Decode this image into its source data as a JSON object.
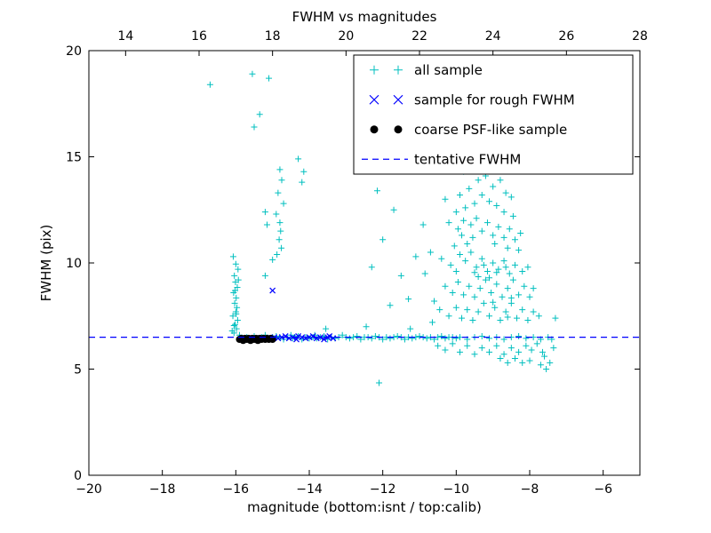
{
  "chart_data": {
    "type": "scatter",
    "title": "FWHM vs magnitudes",
    "xlabel": "magnitude (bottom:isnt / top:calib)",
    "ylabel": "FWHM (pix)",
    "xlim": [
      -20,
      -5
    ],
    "ylim": [
      0,
      20
    ],
    "x_ticks_bottom": [
      -20,
      -18,
      -16,
      -14,
      -12,
      -10,
      -8,
      -6
    ],
    "x_ticks_top": [
      14,
      16,
      18,
      20,
      22,
      24,
      26,
      28
    ],
    "top_axis_offset": 33,
    "y_ticks": [
      0,
      5,
      10,
      15,
      20
    ],
    "grid": false,
    "frame_color": "#000000",
    "legend": {
      "position": "upper right",
      "entries": [
        {
          "label": "all sample",
          "marker": "plus",
          "color": "#00bfbf"
        },
        {
          "label": "sample for rough FWHM",
          "marker": "x",
          "color": "#0000ff"
        },
        {
          "label": "coarse PSF-like sample",
          "marker": "dot",
          "color": "#000000"
        },
        {
          "label": "tentative FWHM",
          "marker": "dashed-line",
          "color": "#0000ff"
        }
      ]
    },
    "hlines": [
      {
        "name": "tentative FWHM",
        "y": 6.5,
        "style": "dashed",
        "color": "#0000ff"
      }
    ],
    "series": [
      {
        "name": "all sample",
        "marker": "plus",
        "color": "#00bfbf",
        "points": [
          [
            -16.05,
            6.7
          ],
          [
            -15.98,
            6.9
          ],
          [
            -16.02,
            7.1
          ],
          [
            -15.95,
            7.3
          ],
          [
            -16.08,
            7.5
          ],
          [
            -16.0,
            7.7
          ],
          [
            -15.97,
            7.9
          ],
          [
            -16.03,
            8.1
          ],
          [
            -15.99,
            8.35
          ],
          [
            -16.06,
            8.6
          ],
          [
            -15.96,
            8.85
          ],
          [
            -16.01,
            9.1
          ],
          [
            -16.04,
            9.4
          ],
          [
            -15.94,
            9.7
          ],
          [
            -16.0,
            9.95
          ],
          [
            -16.07,
            10.3
          ],
          [
            -15.93,
            9.2
          ],
          [
            -16.02,
            8.7
          ],
          [
            -15.99,
            7.6
          ],
          [
            -16.05,
            7.05
          ],
          [
            -15.9,
            6.6
          ],
          [
            -16.1,
            6.8
          ],
          [
            -16.7,
            18.4
          ],
          [
            -15.55,
            18.9
          ],
          [
            -15.1,
            18.7
          ],
          [
            -15.35,
            17.0
          ],
          [
            -15.5,
            16.4
          ],
          [
            -14.8,
            14.4
          ],
          [
            -14.75,
            13.9
          ],
          [
            -14.85,
            13.3
          ],
          [
            -14.7,
            12.8
          ],
          [
            -14.9,
            12.3
          ],
          [
            -14.8,
            11.9
          ],
          [
            -14.78,
            11.5
          ],
          [
            -14.82,
            11.1
          ],
          [
            -14.76,
            10.7
          ],
          [
            -14.88,
            10.4
          ],
          [
            -15.2,
            12.4
          ],
          [
            -15.15,
            11.8
          ],
          [
            -14.3,
            14.9
          ],
          [
            -14.2,
            13.8
          ],
          [
            -14.15,
            14.3
          ],
          [
            -15.2,
            9.4
          ],
          [
            -15.0,
            10.15
          ],
          [
            -15.85,
            6.45
          ],
          [
            -15.7,
            6.5
          ],
          [
            -15.6,
            6.4
          ],
          [
            -15.5,
            6.55
          ],
          [
            -15.4,
            6.45
          ],
          [
            -15.3,
            6.5
          ],
          [
            -15.2,
            6.6
          ],
          [
            -15.1,
            6.4
          ],
          [
            -15.0,
            6.5
          ],
          [
            -14.95,
            6.45
          ],
          [
            -14.9,
            6.55
          ],
          [
            -14.8,
            6.5
          ],
          [
            -14.7,
            6.4
          ],
          [
            -14.6,
            6.5
          ],
          [
            -14.5,
            6.6
          ],
          [
            -14.45,
            6.45
          ],
          [
            -14.4,
            6.5
          ],
          [
            -14.3,
            6.55
          ],
          [
            -14.2,
            6.4
          ],
          [
            -14.1,
            6.5
          ],
          [
            -14.0,
            6.45
          ],
          [
            -13.9,
            6.5
          ],
          [
            -13.85,
            6.6
          ],
          [
            -13.8,
            6.45
          ],
          [
            -13.7,
            6.5
          ],
          [
            -13.6,
            6.55
          ],
          [
            -13.5,
            6.4
          ],
          [
            -13.4,
            6.5
          ],
          [
            -13.3,
            6.45
          ],
          [
            -13.2,
            6.5
          ],
          [
            -13.1,
            6.6
          ],
          [
            -13.0,
            6.5
          ],
          [
            -12.9,
            6.45
          ],
          [
            -12.8,
            6.5
          ],
          [
            -12.7,
            6.55
          ],
          [
            -12.6,
            6.4
          ],
          [
            -12.5,
            6.5
          ],
          [
            -12.4,
            6.5
          ],
          [
            -12.3,
            6.45
          ],
          [
            -12.2,
            6.55
          ],
          [
            -12.1,
            6.5
          ],
          [
            -12.0,
            6.4
          ],
          [
            -11.9,
            6.5
          ],
          [
            -11.8,
            6.45
          ],
          [
            -11.7,
            6.5
          ],
          [
            -11.6,
            6.55
          ],
          [
            -11.5,
            6.5
          ],
          [
            -11.4,
            6.4
          ],
          [
            -11.3,
            6.5
          ],
          [
            -11.2,
            6.45
          ],
          [
            -11.1,
            6.5
          ],
          [
            -11.0,
            6.55
          ],
          [
            -10.9,
            6.5
          ],
          [
            -10.8,
            6.45
          ],
          [
            -10.7,
            6.5
          ],
          [
            -10.6,
            6.4
          ],
          [
            -10.5,
            6.5
          ],
          [
            -10.4,
            6.55
          ],
          [
            -10.3,
            6.45
          ],
          [
            -10.2,
            6.5
          ],
          [
            -10.1,
            6.5
          ],
          [
            -10.0,
            6.45
          ],
          [
            -9.9,
            6.5
          ],
          [
            -9.7,
            6.4
          ],
          [
            -9.5,
            6.5
          ],
          [
            -9.3,
            6.55
          ],
          [
            -9.1,
            6.45
          ],
          [
            -8.9,
            6.5
          ],
          [
            -8.7,
            6.4
          ],
          [
            -8.5,
            6.5
          ],
          [
            -8.3,
            6.55
          ],
          [
            -8.1,
            6.45
          ],
          [
            -7.9,
            6.5
          ],
          [
            -7.7,
            6.4
          ],
          [
            -7.5,
            6.5
          ],
          [
            -13.55,
            6.9
          ],
          [
            -12.45,
            7.0
          ],
          [
            -11.25,
            6.9
          ],
          [
            -12.1,
            4.35
          ],
          [
            -12.3,
            9.8
          ],
          [
            -12.0,
            11.1
          ],
          [
            -11.7,
            12.5
          ],
          [
            -12.15,
            13.4
          ],
          [
            -11.3,
            8.3
          ],
          [
            -11.1,
            10.3
          ],
          [
            -10.9,
            11.8
          ],
          [
            -11.8,
            8.0
          ],
          [
            -11.5,
            9.4
          ],
          [
            -10.85,
            9.5
          ],
          [
            -10.7,
            10.5
          ],
          [
            -10.6,
            8.2
          ],
          [
            -10.65,
            7.2
          ],
          [
            -10.1,
            14.6
          ],
          [
            -9.8,
            14.3
          ],
          [
            -9.55,
            14.5
          ],
          [
            -9.4,
            13.9
          ],
          [
            -9.2,
            14.1
          ],
          [
            -9.0,
            13.6
          ],
          [
            -8.8,
            13.9
          ],
          [
            -8.65,
            13.3
          ],
          [
            -9.65,
            13.5
          ],
          [
            -9.9,
            13.2
          ],
          [
            -10.3,
            13.0
          ],
          [
            -8.5,
            13.1
          ],
          [
            -9.3,
            13.2
          ],
          [
            -9.1,
            12.9
          ],
          [
            -8.9,
            12.7
          ],
          [
            -9.5,
            12.8
          ],
          [
            -9.75,
            12.6
          ],
          [
            -10.0,
            12.4
          ],
          [
            -8.7,
            12.4
          ],
          [
            -8.45,
            12.2
          ],
          [
            -10.2,
            11.9
          ],
          [
            -9.95,
            11.6
          ],
          [
            -9.8,
            12.0
          ],
          [
            -9.6,
            11.8
          ],
          [
            -9.45,
            12.1
          ],
          [
            -9.3,
            11.5
          ],
          [
            -9.15,
            11.9
          ],
          [
            -9.0,
            11.3
          ],
          [
            -8.85,
            11.7
          ],
          [
            -8.7,
            11.2
          ],
          [
            -8.55,
            11.6
          ],
          [
            -8.4,
            11.1
          ],
          [
            -8.25,
            11.4
          ],
          [
            -9.55,
            11.2
          ],
          [
            -9.7,
            10.9
          ],
          [
            -9.85,
            11.3
          ],
          [
            -10.05,
            10.8
          ],
          [
            -8.95,
            10.9
          ],
          [
            -8.6,
            10.7
          ],
          [
            -8.3,
            10.6
          ],
          [
            -10.4,
            10.2
          ],
          [
            -10.15,
            9.9
          ],
          [
            -9.9,
            10.4
          ],
          [
            -9.75,
            10.1
          ],
          [
            -9.6,
            10.5
          ],
          [
            -9.45,
            9.8
          ],
          [
            -9.3,
            10.2
          ],
          [
            -9.15,
            9.6
          ],
          [
            -9.0,
            10.0
          ],
          [
            -8.85,
            9.7
          ],
          [
            -8.7,
            10.1
          ],
          [
            -8.55,
            9.5
          ],
          [
            -8.4,
            9.9
          ],
          [
            -8.2,
            9.6
          ],
          [
            -8.05,
            9.8
          ],
          [
            -9.5,
            9.55
          ],
          [
            -9.25,
            9.9
          ],
          [
            -8.9,
            9.55
          ],
          [
            -8.65,
            9.8
          ],
          [
            -10.0,
            9.6
          ],
          [
            -10.3,
            8.9
          ],
          [
            -10.1,
            8.6
          ],
          [
            -9.95,
            9.1
          ],
          [
            -9.8,
            8.5
          ],
          [
            -9.65,
            8.9
          ],
          [
            -9.5,
            8.4
          ],
          [
            -9.35,
            8.8
          ],
          [
            -9.2,
            9.2
          ],
          [
            -9.05,
            8.6
          ],
          [
            -8.9,
            9.0
          ],
          [
            -8.75,
            8.4
          ],
          [
            -8.6,
            8.8
          ],
          [
            -8.45,
            9.2
          ],
          [
            -8.3,
            8.5
          ],
          [
            -8.15,
            8.9
          ],
          [
            -8.0,
            8.4
          ],
          [
            -7.9,
            8.8
          ],
          [
            -9.4,
            9.35
          ],
          [
            -9.1,
            9.3
          ],
          [
            -8.5,
            8.35
          ],
          [
            -10.45,
            7.8
          ],
          [
            -10.2,
            7.5
          ],
          [
            -10.0,
            7.9
          ],
          [
            -9.85,
            7.4
          ],
          [
            -9.7,
            7.8
          ],
          [
            -9.55,
            7.3
          ],
          [
            -9.4,
            7.7
          ],
          [
            -9.25,
            8.1
          ],
          [
            -9.1,
            7.5
          ],
          [
            -8.95,
            7.9
          ],
          [
            -8.8,
            7.3
          ],
          [
            -8.65,
            7.7
          ],
          [
            -8.5,
            8.1
          ],
          [
            -8.35,
            7.4
          ],
          [
            -8.2,
            7.8
          ],
          [
            -8.05,
            7.3
          ],
          [
            -7.9,
            7.7
          ],
          [
            -7.75,
            7.5
          ],
          [
            -9.0,
            8.15
          ],
          [
            -8.6,
            7.45
          ],
          [
            -10.5,
            6.1
          ],
          [
            -10.3,
            5.9
          ],
          [
            -10.1,
            6.2
          ],
          [
            -9.9,
            5.8
          ],
          [
            -9.7,
            6.1
          ],
          [
            -9.5,
            5.7
          ],
          [
            -9.3,
            6.0
          ],
          [
            -9.1,
            5.8
          ],
          [
            -8.9,
            6.1
          ],
          [
            -8.7,
            5.7
          ],
          [
            -8.5,
            6.0
          ],
          [
            -8.3,
            5.8
          ],
          [
            -8.1,
            6.1
          ],
          [
            -7.95,
            5.9
          ],
          [
            -7.8,
            6.2
          ],
          [
            -7.65,
            5.8
          ],
          [
            -8.0,
            5.4
          ],
          [
            -8.2,
            5.3
          ],
          [
            -8.4,
            5.5
          ],
          [
            -8.6,
            5.3
          ],
          [
            -8.8,
            5.5
          ],
          [
            -7.7,
            5.2
          ],
          [
            -7.55,
            5.0
          ],
          [
            -7.45,
            5.3
          ],
          [
            -7.6,
            5.6
          ],
          [
            -7.3,
            7.4
          ],
          [
            -7.4,
            6.4
          ],
          [
            -7.35,
            6.0
          ]
        ]
      },
      {
        "name": "sample for rough FWHM",
        "marker": "x",
        "color": "#0000ff",
        "points": [
          [
            -15.0,
            8.7
          ],
          [
            -14.95,
            6.5
          ],
          [
            -14.85,
            6.45
          ],
          [
            -14.75,
            6.5
          ],
          [
            -14.65,
            6.55
          ],
          [
            -14.55,
            6.45
          ],
          [
            -14.45,
            6.5
          ],
          [
            -14.35,
            6.4
          ],
          [
            -14.3,
            6.55
          ],
          [
            -14.2,
            6.5
          ],
          [
            -14.1,
            6.45
          ],
          [
            -14.0,
            6.5
          ],
          [
            -13.9,
            6.55
          ],
          [
            -13.8,
            6.45
          ],
          [
            -13.7,
            6.5
          ],
          [
            -13.6,
            6.4
          ],
          [
            -13.5,
            6.5
          ],
          [
            -13.45,
            6.55
          ],
          [
            -13.35,
            6.45
          ]
        ]
      },
      {
        "name": "coarse PSF-like sample",
        "marker": "dot",
        "color": "#000000",
        "points": [
          [
            -15.9,
            6.4
          ],
          [
            -15.85,
            6.45
          ],
          [
            -15.8,
            6.35
          ],
          [
            -15.75,
            6.45
          ],
          [
            -15.7,
            6.4
          ],
          [
            -15.65,
            6.45
          ],
          [
            -15.6,
            6.35
          ],
          [
            -15.55,
            6.45
          ],
          [
            -15.5,
            6.4
          ],
          [
            -15.45,
            6.45
          ],
          [
            -15.4,
            6.35
          ],
          [
            -15.35,
            6.45
          ],
          [
            -15.3,
            6.4
          ],
          [
            -15.25,
            6.45
          ],
          [
            -15.2,
            6.4
          ],
          [
            -15.15,
            6.45
          ],
          [
            -15.1,
            6.4
          ],
          [
            -15.05,
            6.45
          ],
          [
            -15.0,
            6.4
          ]
        ]
      }
    ]
  }
}
